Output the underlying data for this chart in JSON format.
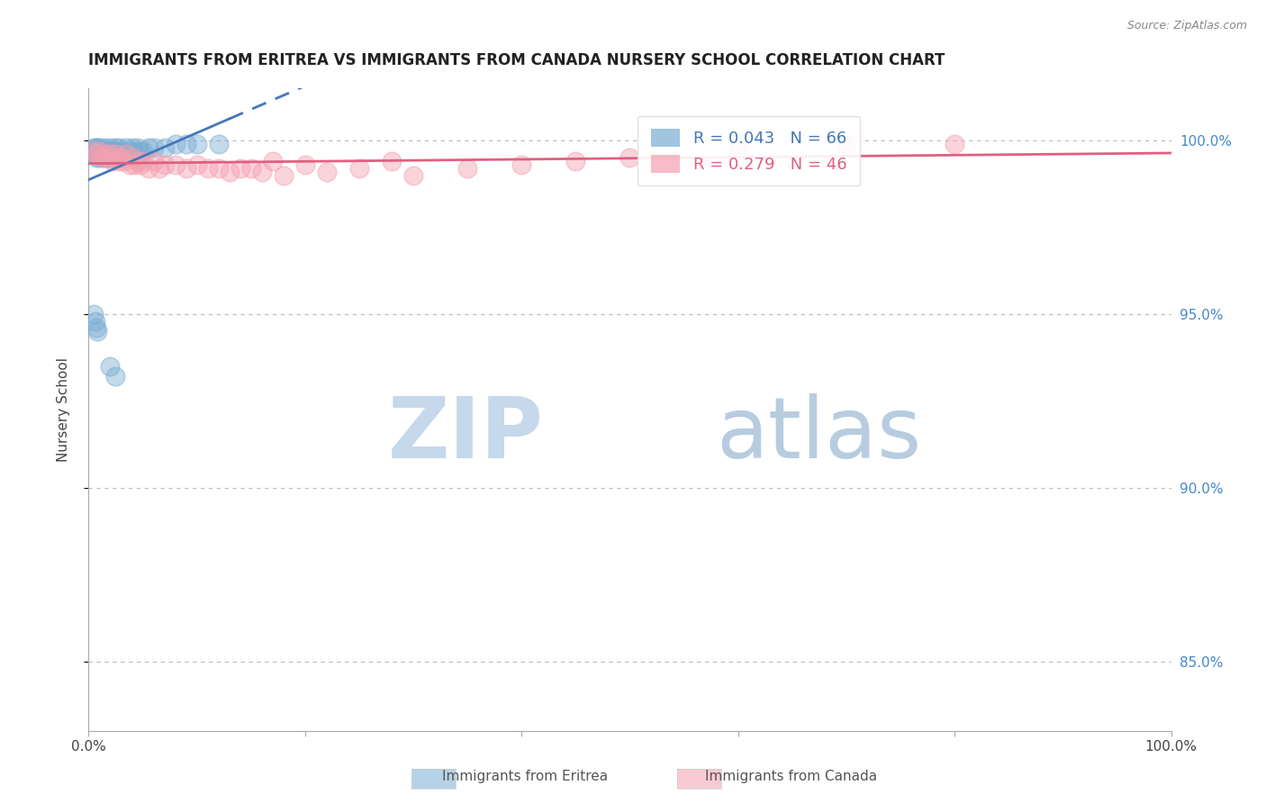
{
  "title": "IMMIGRANTS FROM ERITREA VS IMMIGRANTS FROM CANADA NURSERY SCHOOL CORRELATION CHART",
  "source": "Source: ZipAtlas.com",
  "ylabel": "Nursery School",
  "xlabel": "",
  "xlim": [
    0.0,
    1.0
  ],
  "ylim": [
    0.83,
    1.015
  ],
  "yticks": [
    0.85,
    0.9,
    0.95,
    1.0
  ],
  "ytick_labels": [
    "85.0%",
    "90.0%",
    "95.0%",
    "100.0%"
  ],
  "xticks": [
    0.0,
    1.0
  ],
  "xtick_labels": [
    "0.0%",
    "100.0%"
  ],
  "R_eritrea": 0.043,
  "N_eritrea": 66,
  "R_canada": 0.279,
  "N_canada": 46,
  "color_eritrea": "#7aadd4",
  "color_canada": "#f4a0b0",
  "color_eritrea_line": "#4477bb",
  "color_canada_line": "#e06080",
  "legend_label_eritrea": "Immigrants from Eritrea",
  "legend_label_canada": "Immigrants from Canada",
  "background_color": "#ffffff",
  "grid_color": "#bbbbbb",
  "right_tick_color": "#4488cc",
  "title_fontsize": 12,
  "eritrea_x": [
    0.005,
    0.005,
    0.005,
    0.007,
    0.007,
    0.007,
    0.007,
    0.008,
    0.008,
    0.008,
    0.01,
    0.01,
    0.01,
    0.01,
    0.011,
    0.011,
    0.012,
    0.012,
    0.013,
    0.013,
    0.014,
    0.014,
    0.015,
    0.015,
    0.015,
    0.016,
    0.016,
    0.017,
    0.017,
    0.018,
    0.018,
    0.019,
    0.019,
    0.02,
    0.02,
    0.021,
    0.021,
    0.022,
    0.022,
    0.023,
    0.024,
    0.025,
    0.026,
    0.028,
    0.03,
    0.032,
    0.035,
    0.038,
    0.04,
    0.042,
    0.045,
    0.048,
    0.05,
    0.055,
    0.06,
    0.07,
    0.08,
    0.09,
    0.1,
    0.12,
    0.005,
    0.006,
    0.007,
    0.008,
    0.02,
    0.025
  ],
  "eritrea_y": [
    0.998,
    0.997,
    0.996,
    0.998,
    0.997,
    0.996,
    0.995,
    0.998,
    0.997,
    0.996,
    0.998,
    0.997,
    0.996,
    0.995,
    0.997,
    0.996,
    0.997,
    0.996,
    0.997,
    0.996,
    0.997,
    0.995,
    0.998,
    0.997,
    0.996,
    0.997,
    0.996,
    0.997,
    0.995,
    0.997,
    0.996,
    0.997,
    0.995,
    0.998,
    0.997,
    0.997,
    0.995,
    0.997,
    0.996,
    0.997,
    0.997,
    0.998,
    0.997,
    0.998,
    0.997,
    0.997,
    0.998,
    0.997,
    0.998,
    0.997,
    0.998,
    0.997,
    0.997,
    0.998,
    0.998,
    0.998,
    0.999,
    0.999,
    0.999,
    0.999,
    0.95,
    0.948,
    0.946,
    0.945,
    0.935,
    0.932
  ],
  "canada_x": [
    0.005,
    0.008,
    0.01,
    0.012,
    0.015,
    0.018,
    0.02,
    0.022,
    0.025,
    0.028,
    0.03,
    0.032,
    0.035,
    0.038,
    0.04,
    0.042,
    0.045,
    0.048,
    0.05,
    0.055,
    0.06,
    0.065,
    0.07,
    0.08,
    0.09,
    0.1,
    0.11,
    0.12,
    0.13,
    0.14,
    0.15,
    0.16,
    0.17,
    0.18,
    0.2,
    0.22,
    0.25,
    0.28,
    0.3,
    0.35,
    0.4,
    0.45,
    0.5,
    0.6,
    0.7,
    0.8
  ],
  "canada_y": [
    0.997,
    0.996,
    0.997,
    0.995,
    0.996,
    0.995,
    0.996,
    0.994,
    0.996,
    0.994,
    0.995,
    0.994,
    0.996,
    0.993,
    0.995,
    0.993,
    0.994,
    0.993,
    0.994,
    0.992,
    0.994,
    0.992,
    0.993,
    0.993,
    0.992,
    0.993,
    0.992,
    0.992,
    0.991,
    0.992,
    0.992,
    0.991,
    0.994,
    0.99,
    0.993,
    0.991,
    0.992,
    0.994,
    0.99,
    0.992,
    0.993,
    0.994,
    0.995,
    0.998,
    0.999,
    0.999
  ]
}
